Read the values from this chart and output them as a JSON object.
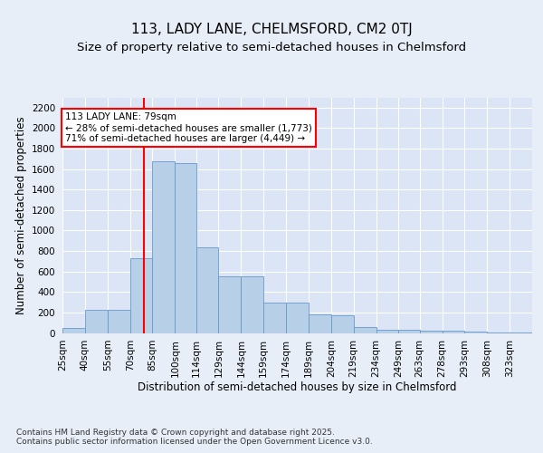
{
  "title": "113, LADY LANE, CHELMSFORD, CM2 0TJ",
  "subtitle": "Size of property relative to semi-detached houses in Chelmsford",
  "xlabel": "Distribution of semi-detached houses by size in Chelmsford",
  "ylabel": "Number of semi-detached properties",
  "bins": [
    "25sqm",
    "40sqm",
    "55sqm",
    "70sqm",
    "85sqm",
    "100sqm",
    "114sqm",
    "129sqm",
    "144sqm",
    "159sqm",
    "174sqm",
    "189sqm",
    "204sqm",
    "219sqm",
    "234sqm",
    "249sqm",
    "263sqm",
    "278sqm",
    "293sqm",
    "308sqm",
    "323sqm"
  ],
  "bar_values": [
    45,
    230,
    230,
    730,
    1680,
    1660,
    840,
    555,
    555,
    300,
    300,
    180,
    175,
    60,
    35,
    35,
    25,
    20,
    10,
    8,
    3
  ],
  "bin_edges": [
    25,
    40,
    55,
    70,
    85,
    100,
    114,
    129,
    144,
    159,
    174,
    189,
    204,
    219,
    234,
    249,
    263,
    278,
    293,
    308,
    323,
    338
  ],
  "bar_color": "#b8cfe8",
  "bar_edge_color": "#6699cc",
  "vline_x": 79,
  "vline_color": "red",
  "annotation_text": "113 LADY LANE: 79sqm\n← 28% of semi-detached houses are smaller (1,773)\n71% of semi-detached houses are larger (4,449) →",
  "annotation_box_color": "white",
  "annotation_box_edge": "red",
  "ylim": [
    0,
    2300
  ],
  "yticks": [
    0,
    200,
    400,
    600,
    800,
    1000,
    1200,
    1400,
    1600,
    1800,
    2000,
    2200
  ],
  "bg_color": "#dce5f5",
  "fig_bg_color": "#e8eef8",
  "grid_color": "#ffffff",
  "title_fontsize": 11,
  "subtitle_fontsize": 9.5,
  "axis_label_fontsize": 8.5,
  "tick_fontsize": 7.5,
  "annotation_fontsize": 7.5,
  "footer_fontsize": 6.5,
  "footer": "Contains HM Land Registry data © Crown copyright and database right 2025.\nContains public sector information licensed under the Open Government Licence v3.0."
}
